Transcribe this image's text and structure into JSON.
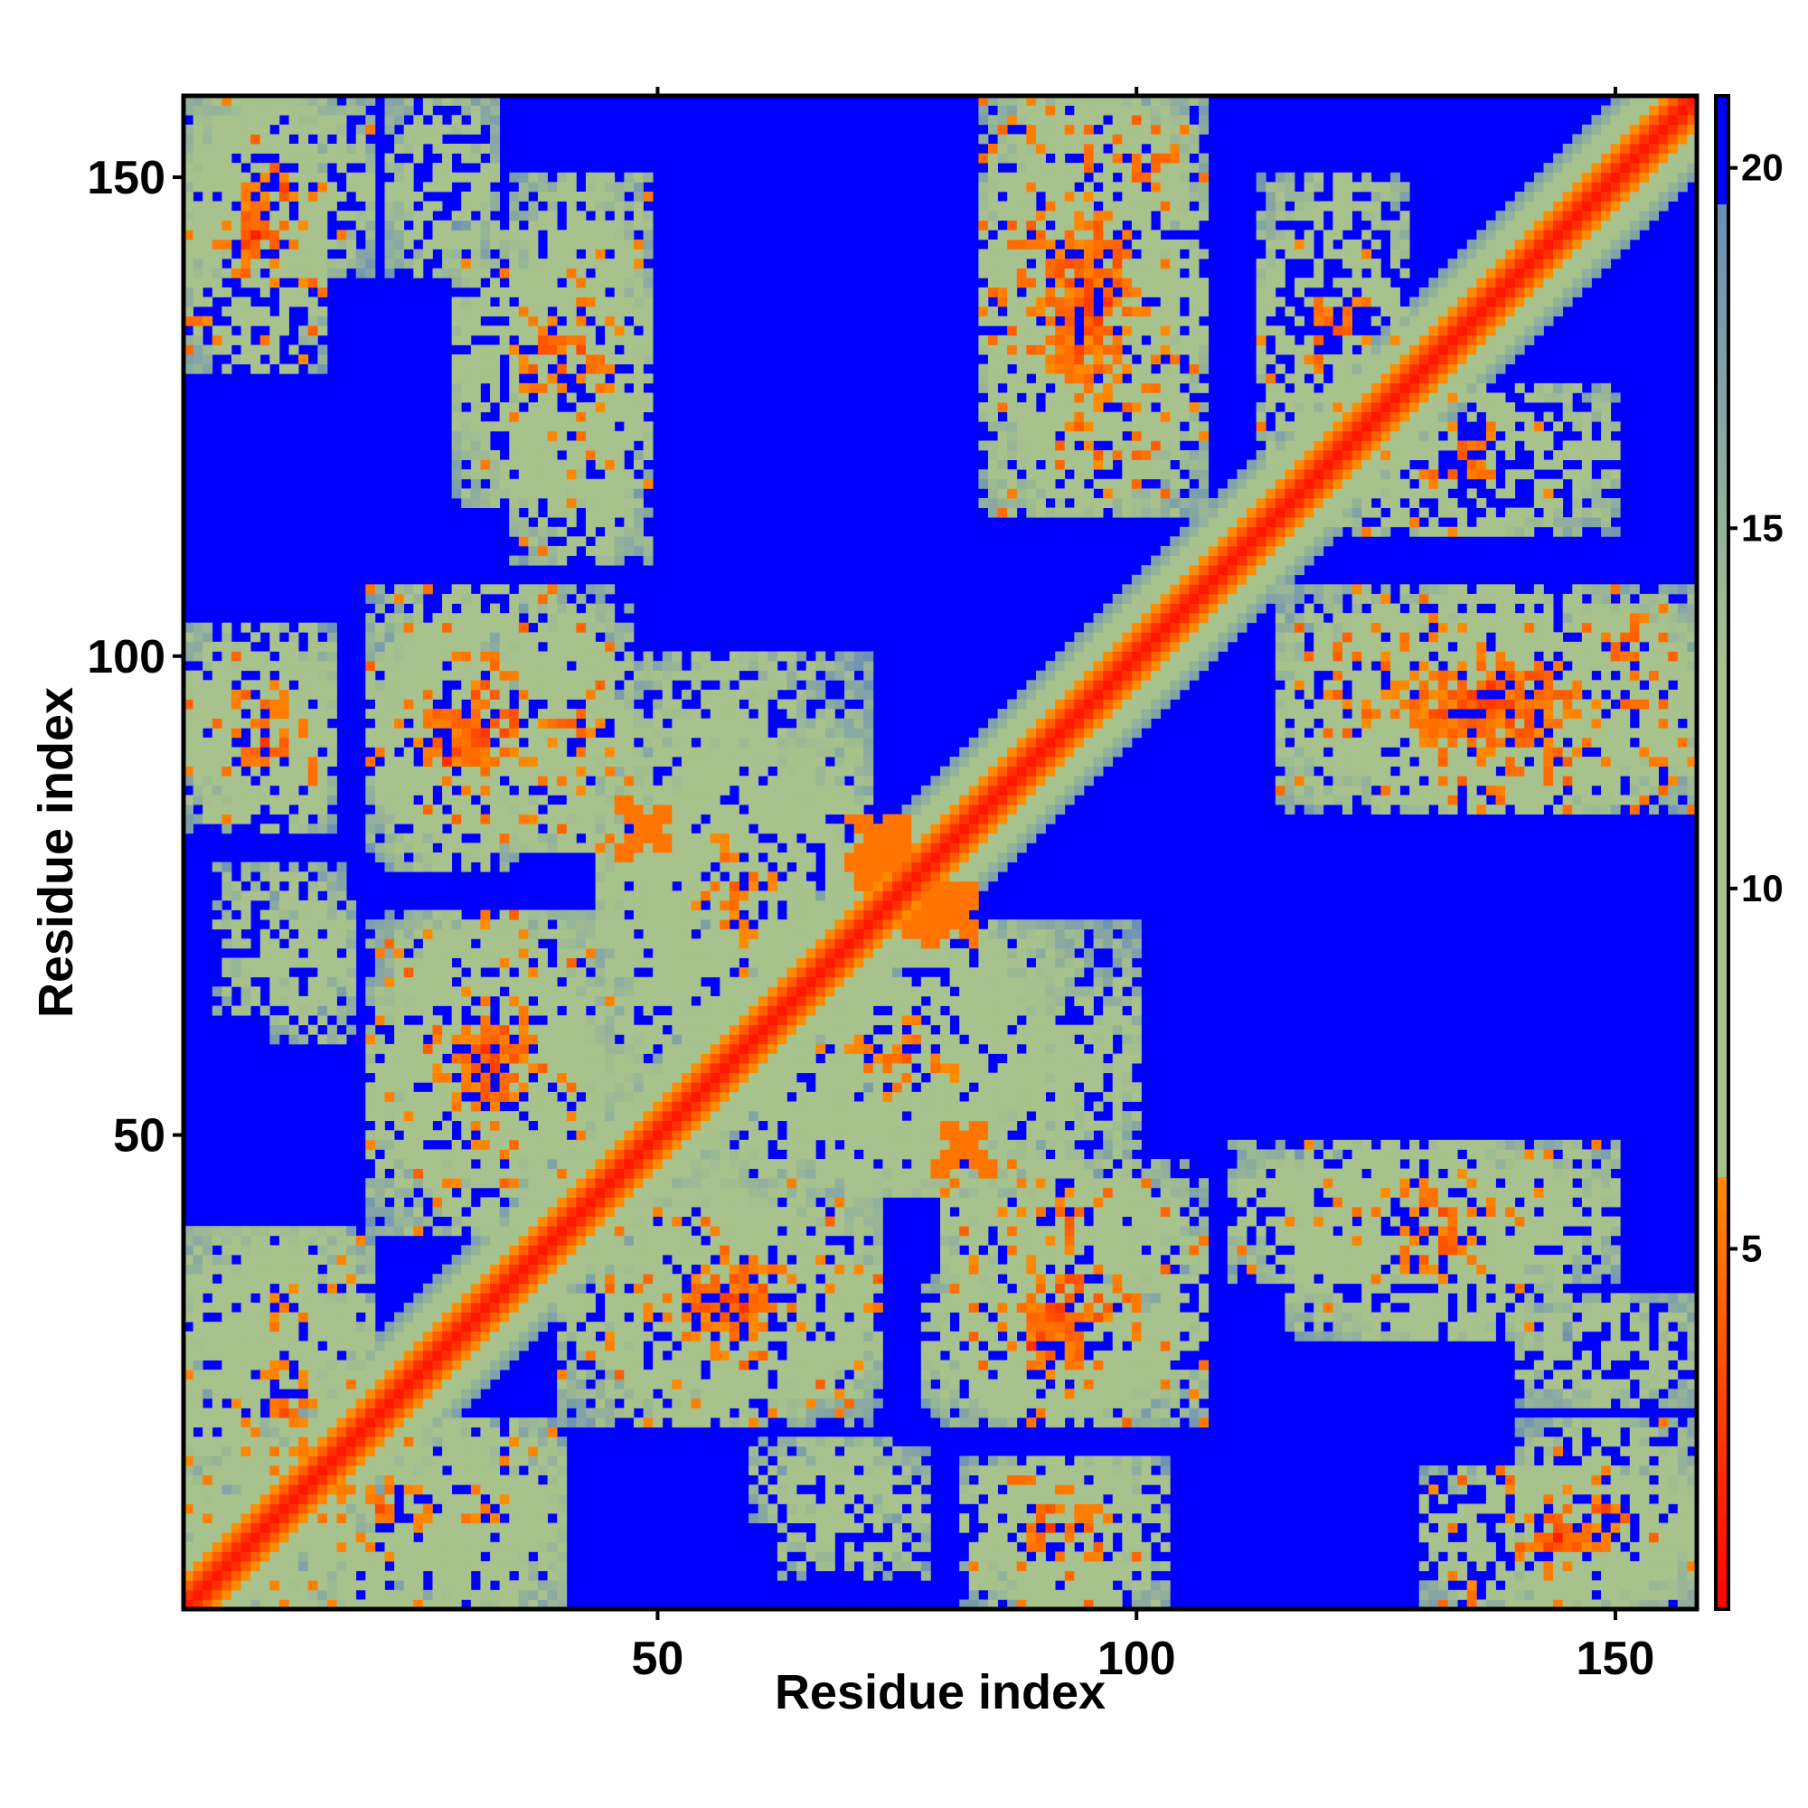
{
  "chart_data": {
    "type": "heatmap",
    "title": "",
    "xlabel": "Residue index",
    "ylabel": "Residue index",
    "xlim": [
      1,
      158
    ],
    "ylim": [
      1,
      158
    ],
    "x_ticks": [
      50,
      100,
      150
    ],
    "y_ticks": [
      50,
      100,
      150
    ],
    "x_tick_labels": [
      "50",
      "100",
      "150"
    ],
    "y_tick_labels": [
      "50",
      "100",
      "150"
    ],
    "n_residues": 158,
    "value_range": [
      0,
      21
    ],
    "colorbar": {
      "ticks": [
        5,
        10,
        15,
        20
      ],
      "tick_labels": [
        "5",
        "10",
        "15",
        "20"
      ],
      "segments": [
        {
          "from": 0,
          "to": 6,
          "colors": [
            "#ff0000",
            "#ff8c00"
          ]
        },
        {
          "from": 6,
          "to": 13,
          "colors": [
            "#a7c28c",
            "#a7c28c"
          ]
        },
        {
          "from": 13,
          "to": 19.5,
          "colors": [
            "#a7c28c",
            "#6a8fb8"
          ]
        },
        {
          "from": 19.5,
          "to": 21,
          "colors": [
            "#0000ff",
            "#0000ff"
          ]
        }
      ]
    },
    "background_value": 21,
    "diagonal_profile": [
      {
        "offset": 0,
        "value": 1
      },
      {
        "offset": 1,
        "value": 2
      },
      {
        "offset": 2,
        "value": 4
      },
      {
        "offset": 3,
        "value": 6
      },
      {
        "offset": 4,
        "value": 9
      },
      {
        "offset": 5,
        "value": 11
      },
      {
        "offset": 6,
        "value": 13
      },
      {
        "offset": 7,
        "value": 15
      },
      {
        "offset": 8,
        "value": 17
      }
    ],
    "contact_patches": [
      {
        "i": [
          1,
          20
        ],
        "j": [
          140,
          158
        ],
        "min_value": 5
      },
      {
        "i": [
          22,
          33
        ],
        "j": [
          140,
          158
        ],
        "min_value": 9
      },
      {
        "i": [
          29,
          48
        ],
        "j": [
          116,
          145
        ],
        "min_value": 5
      },
      {
        "i": [
          84,
          104
        ],
        "j": [
          115,
          158
        ],
        "min_value": 4
      },
      {
        "i": [
          113,
          128
        ],
        "j": [
          117,
          150
        ],
        "min_value": 5
      },
      {
        "i": [
          1,
          16
        ],
        "j": [
          85,
          103
        ],
        "min_value": 5
      },
      {
        "i": [
          20,
          45
        ],
        "j": [
          80,
          107
        ],
        "min_value": 4
      },
      {
        "i": [
          44,
          72
        ],
        "j": [
          60,
          92
        ],
        "min_value": 6
      },
      {
        "i": [
          115,
          160
        ],
        "j": [
          85,
          107
        ],
        "min_value": 4
      },
      {
        "i": [
          4,
          17
        ],
        "j": [
          63,
          78
        ],
        "min_value": 9
      },
      {
        "i": [
          20,
          45
        ],
        "j": [
          40,
          72
        ],
        "min_value": 5
      },
      {
        "i": [
          44,
          100
        ],
        "j": [
          44,
          72
        ],
        "min_value": 7
      },
      {
        "i": [
          80,
          105
        ],
        "j": [
          35,
          47
        ],
        "min_value": 5
      },
      {
        "i": [
          110,
          150
        ],
        "j": [
          35,
          49
        ],
        "min_value": 5
      },
      {
        "i": [
          1,
          20
        ],
        "j": [
          23,
          40
        ],
        "min_value": 6
      },
      {
        "i": [
          45,
          73
        ],
        "j": [
          22,
          43
        ],
        "min_value": 4
      },
      {
        "i": [
          78,
          103
        ],
        "j": [
          21,
          35
        ],
        "min_value": 4
      },
      {
        "i": [
          1,
          40
        ],
        "j": [
          1,
          20
        ],
        "min_value": 5
      },
      {
        "i": [
          60,
          75
        ],
        "j": [
          10,
          18
        ],
        "min_value": 9
      },
      {
        "i": [
          82,
          100
        ],
        "j": [
          1,
          16
        ],
        "min_value": 4
      },
      {
        "i": [
          130,
          158
        ],
        "j": [
          1,
          15
        ],
        "min_value": 4
      }
    ],
    "strong_contacts": [
      {
        "i": [
          47,
          51
        ],
        "j": [
          80,
          84
        ],
        "value": 5
      },
      {
        "i": [
          70,
          76
        ],
        "j": [
          78,
          83
        ],
        "value": 5
      },
      {
        "i": [
          76,
          83
        ],
        "j": [
          71,
          76
        ],
        "value": 5
      },
      {
        "i": [
          79,
          85
        ],
        "j": [
          46,
          50
        ],
        "value": 5
      }
    ]
  }
}
